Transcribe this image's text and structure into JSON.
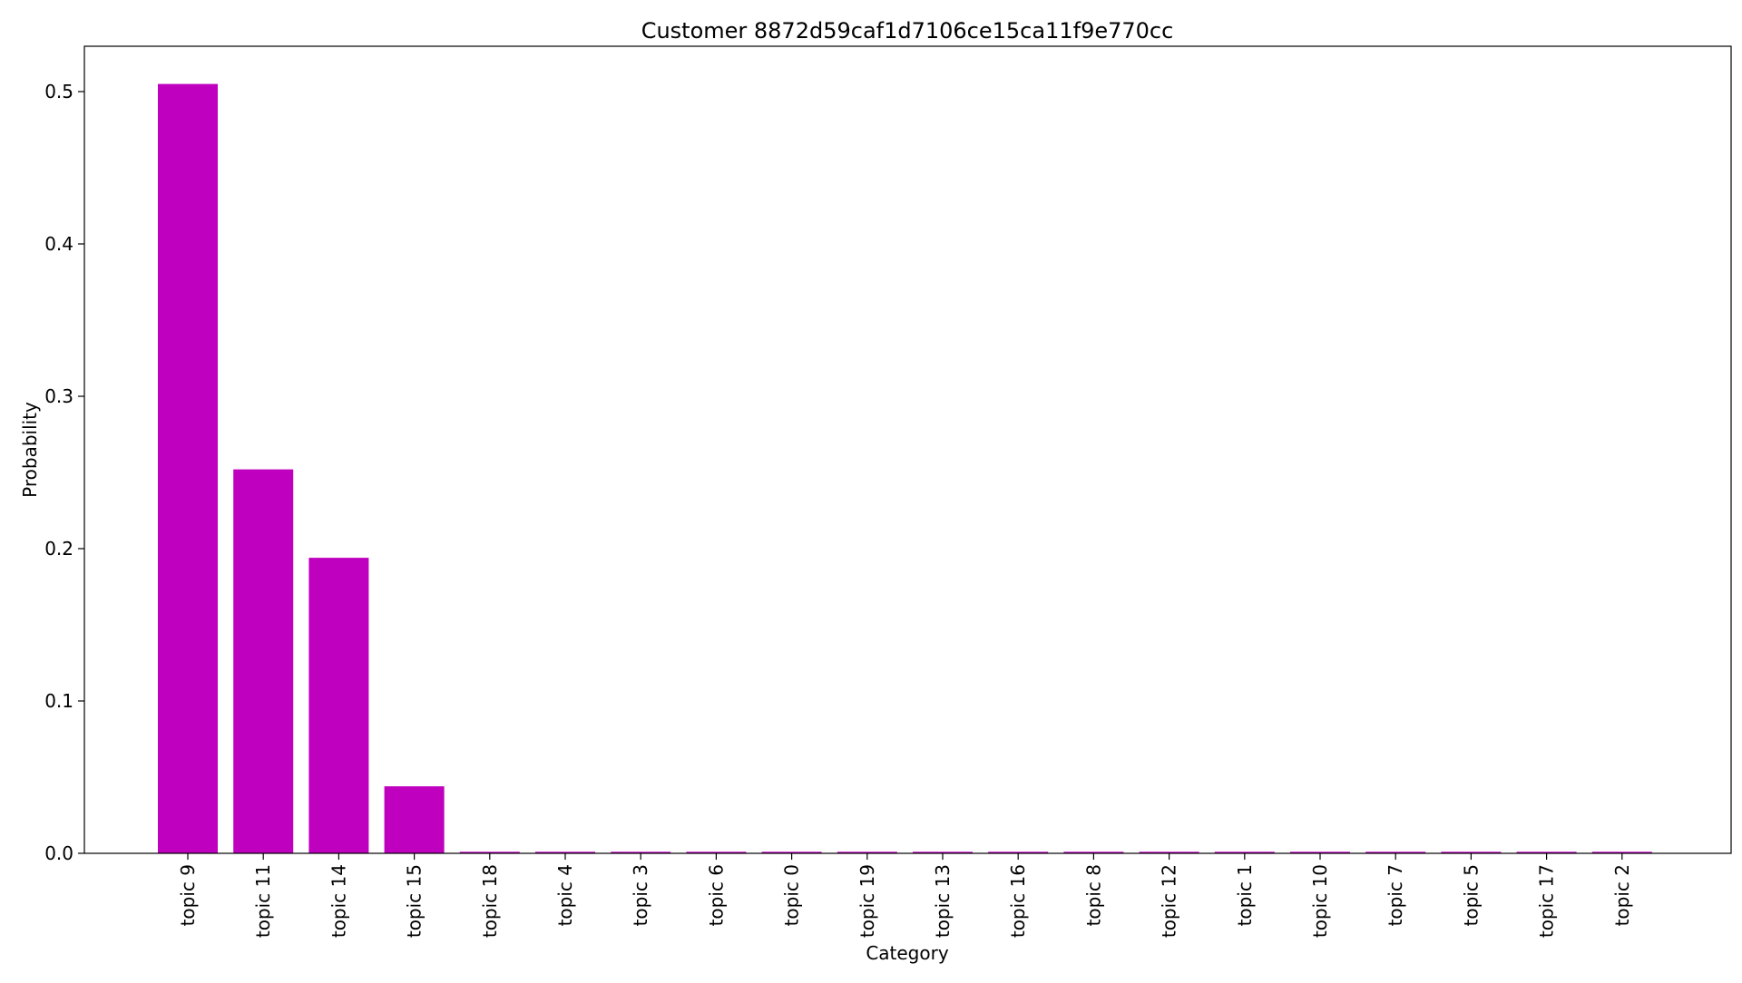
{
  "chart_data": {
    "type": "bar",
    "title": "Customer 8872d59caf1d7106ce15ca11f9e770cc",
    "xlabel": "Category",
    "ylabel": "Probability",
    "categories": [
      "topic 9",
      "topic 11",
      "topic 14",
      "topic 15",
      "topic 18",
      "topic 4",
      "topic 3",
      "topic 6",
      "topic 0",
      "topic 19",
      "topic 13",
      "topic 16",
      "topic 8",
      "topic 12",
      "topic 1",
      "topic 10",
      "topic 7",
      "topic 5",
      "topic 17",
      "topic 2"
    ],
    "values": [
      0.505,
      0.252,
      0.194,
      0.044,
      0.001,
      0.001,
      0.001,
      0.001,
      0.001,
      0.001,
      0.001,
      0.001,
      0.001,
      0.001,
      0.001,
      0.001,
      0.001,
      0.001,
      0.001,
      0.001
    ],
    "y_ticks": [
      "0.0",
      "0.1",
      "0.2",
      "0.3",
      "0.4",
      "0.5"
    ],
    "ylim": [
      0,
      0.53
    ],
    "bar_color": "#bf00bf",
    "grid": false,
    "legend": "none"
  }
}
